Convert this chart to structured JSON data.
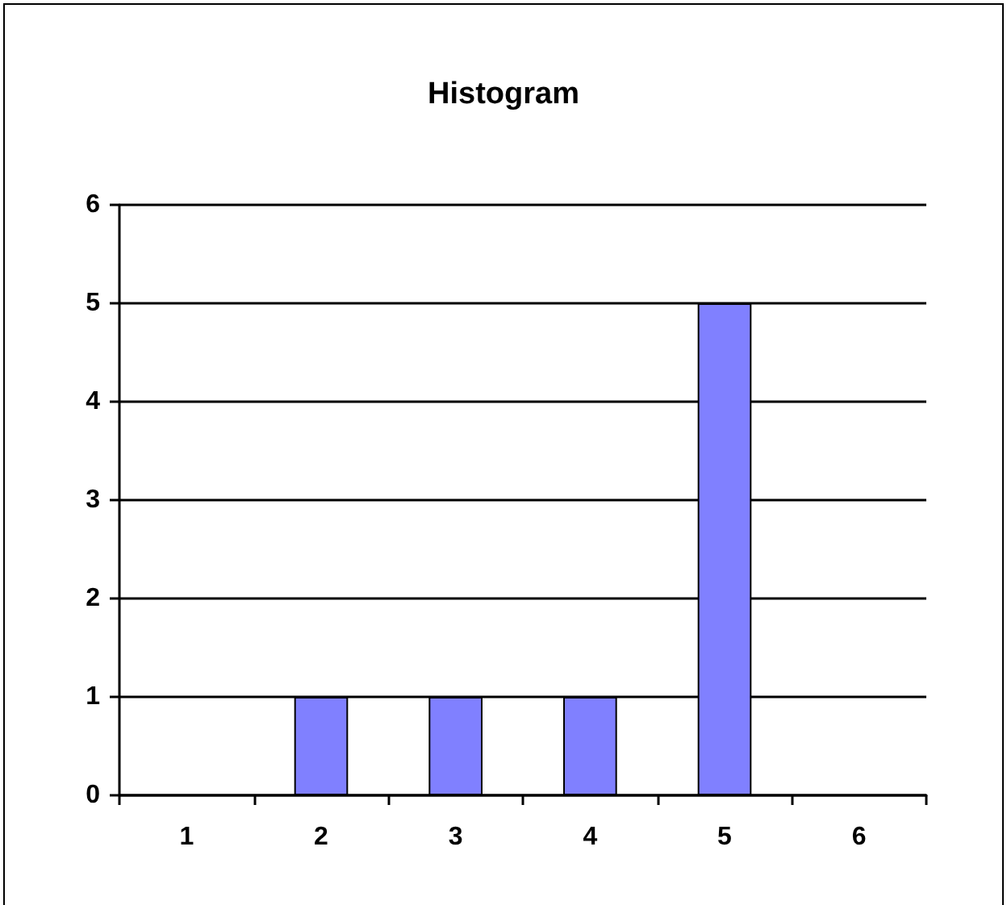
{
  "chart_data": {
    "type": "bar",
    "title": "Histogram",
    "categories": [
      "1",
      "2",
      "3",
      "4",
      "5",
      "6"
    ],
    "values": [
      0,
      1,
      1,
      1,
      5,
      0
    ],
    "color": "#8080ff",
    "ylim": [
      0,
      6
    ],
    "yticks": [
      0,
      1,
      2,
      3,
      4,
      5,
      6
    ],
    "grid": "y"
  }
}
